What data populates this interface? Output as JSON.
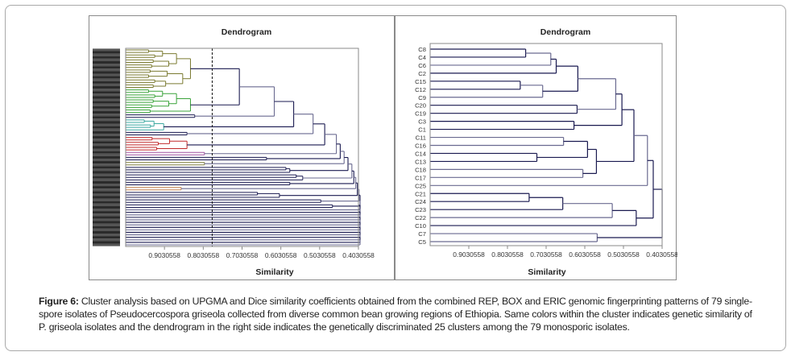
{
  "figure": {
    "caption_label": "Figure 6:",
    "caption_text": " Cluster analysis based on UPGMA and Dice similarity coefficients obtained from the combined REP, BOX and ERIC genomic fingerprinting patterns of 79 single-spore isolates of Pseudocercospora griseola collected from diverse common bean growing regions of Ethiopia. Same colors within the cluster indicates genetic similarity of P. griseola isolates and the dendrogram in the right side indicates the genetically discriminated 25 clusters among the 79 monosporic isolates."
  },
  "chart_data": [
    {
      "type": "dendrogram",
      "title": "Dendrogram",
      "xlabel": "Similarity",
      "ylabel": "",
      "x_ticks": [
        "0.9030558",
        "0.8030558",
        "0.7030558",
        "0.6030558",
        "0.5030558",
        "0.4030558"
      ],
      "x_tick_values": [
        0.9030558,
        0.8030558,
        0.7030558,
        0.6030558,
        0.5030558,
        0.4030558
      ],
      "xlim": [
        1.0030558,
        0.4030558
      ],
      "leaf_count": 79,
      "leaf_labels_legible": false,
      "cutoff_similarity": 0.78,
      "cutoff_style": "dashed",
      "colored_groups": [
        {
          "color": "#7a7a30",
          "name": "olive cluster",
          "leaves": 16
        },
        {
          "color": "#3aa33a",
          "name": "green cluster",
          "leaves": 10
        },
        {
          "color": "#3aa8a0",
          "name": "teal cluster",
          "leaves": 5
        },
        {
          "color": "#c0282a",
          "name": "red cluster",
          "leaves": 6
        },
        {
          "color": "#a050a0",
          "name": "purple pair",
          "leaves": 2
        },
        {
          "color": "#808040",
          "name": "olive pair",
          "leaves": 2
        },
        {
          "color": "#c08050",
          "name": "tan pair",
          "leaves": 2
        }
      ],
      "default_line_color": "#1a1a50",
      "secondary_line_color": "#6a6a90"
    },
    {
      "type": "dendrogram",
      "title": "Dendrogram",
      "xlabel": "Similarity",
      "ylabel": "",
      "x_ticks": [
        "0.9030558",
        "0.8030558",
        "0.7030558",
        "0.6030558",
        "0.5030558",
        "0.4030558"
      ],
      "x_tick_values": [
        0.9030558,
        0.8030558,
        0.7030558,
        0.6030558,
        0.5030558,
        0.4030558
      ],
      "xlim": [
        1.0030558,
        0.4030558
      ],
      "leaves": [
        "C8",
        "C4",
        "C6",
        "C2",
        "C15",
        "C12",
        "C9",
        "C20",
        "C19",
        "C3",
        "C1",
        "C11",
        "C16",
        "C14",
        "C13",
        "C18",
        "C17",
        "C25",
        "C21",
        "C24",
        "C23",
        "C22",
        "C10",
        "C7",
        "C5"
      ],
      "merges": [
        {
          "a": "C8",
          "b": "C4",
          "similarity": 0.756
        },
        {
          "a": "C8+C4",
          "b": "C6",
          "similarity": 0.691
        },
        {
          "a": "C8+C4+C6",
          "b": "C2",
          "similarity": 0.677
        },
        {
          "a": "C15",
          "b": "C12",
          "similarity": 0.77
        },
        {
          "a": "C15+C12",
          "b": "C9",
          "similarity": 0.712
        },
        {
          "a": "C8..C2",
          "b": "C15..C9",
          "similarity": 0.621
        },
        {
          "a": "C20",
          "b": "C19",
          "similarity": 0.623
        },
        {
          "a": "C8..C9",
          "b": "C20+C19",
          "similarity": 0.523
        },
        {
          "a": "C3",
          "b": "C1",
          "similarity": 0.631
        },
        {
          "a": "C8..C19",
          "b": "C3+C1",
          "similarity": 0.507
        },
        {
          "a": "C11",
          "b": "C16",
          "similarity": 0.658
        },
        {
          "a": "C14",
          "b": "C13",
          "similarity": 0.727
        },
        {
          "a": "C11+C16",
          "b": "C14+C13",
          "similarity": 0.596
        },
        {
          "a": "C18",
          "b": "C17",
          "similarity": 0.608
        },
        {
          "a": "C11..C13",
          "b": "C18+C17",
          "similarity": 0.573
        },
        {
          "a": "C8..C1",
          "b": "C11..C17",
          "similarity": 0.476
        },
        {
          "a": "C8..C17",
          "b": "C25",
          "similarity": 0.441
        },
        {
          "a": "C21",
          "b": "C24",
          "similarity": 0.747
        },
        {
          "a": "C21+C24",
          "b": "C23",
          "similarity": 0.66
        },
        {
          "a": "C21..C23",
          "b": "C22",
          "similarity": 0.532
        },
        {
          "a": "C21..C22",
          "b": "C10",
          "similarity": 0.47
        },
        {
          "a": "C8..C25",
          "b": "C21..C10",
          "similarity": 0.426
        },
        {
          "a": "C7",
          "b": "C5",
          "similarity": 0.571
        },
        {
          "a": "C8..C10",
          "b": "C7+C5",
          "similarity": 0.403
        }
      ],
      "line_color": "#1a1a50",
      "secondary_line_color": "#6a6a90"
    }
  ]
}
